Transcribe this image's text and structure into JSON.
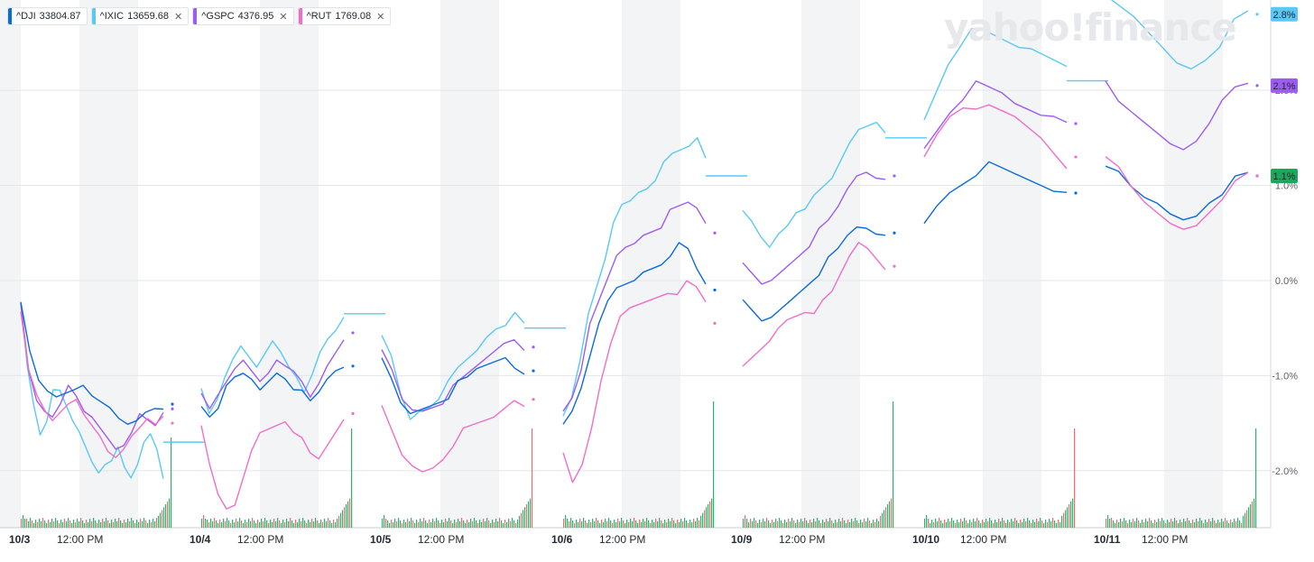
{
  "brand": {
    "watermark": "yahoo!finance"
  },
  "legend": [
    {
      "symbol": "^DJI",
      "value": "33804.87",
      "color": "#0b6bd8",
      "closable": false
    },
    {
      "symbol": "^IXIC",
      "value": "13659.68",
      "color": "#5ac8f5",
      "closable": true
    },
    {
      "symbol": "^GSPC",
      "value": "4376.95",
      "color": "#9d5cf0",
      "closable": true
    },
    {
      "symbol": "^RUT",
      "value": "1769.08",
      "color": "#f06ec8",
      "closable": true
    }
  ],
  "chart_data": {
    "type": "line",
    "y_ticks": [
      "2.0%",
      "1.0%",
      "0.0%",
      "-1.0%",
      "-2.0%"
    ],
    "ylim": [
      -2.6,
      2.95
    ],
    "grid": true,
    "x_day_labels": [
      "10/3",
      "10/4",
      "10/5",
      "10/6",
      "10/9",
      "10/10",
      "10/11"
    ],
    "x_time_label": "12:00 PM",
    "last_value_flags": [
      {
        "series": "^IXIC",
        "label": "2.8%",
        "value": 2.8
      },
      {
        "series": "^GSPC",
        "label": "2.1%",
        "value": 2.05
      },
      {
        "series": "^DJI",
        "label": "1.1%",
        "value": 1.1
      }
    ],
    "series": [
      {
        "name": "^IXIC",
        "color": "#5ac8f5",
        "days": [
          {
            "open": -0.25,
            "points": [
              -0.25,
              -0.9,
              -1.3,
              -1.6,
              -1.45,
              -1.1,
              -1.2,
              -1.35,
              -1.5,
              -1.6,
              -1.75,
              -1.9,
              -2.0,
              -1.9,
              -1.85,
              -1.8,
              -2.0,
              -2.1,
              -1.95,
              -1.7,
              -1.6,
              -1.75,
              -2.05
            ],
            "close": -1.7
          },
          {
            "open": -1.1,
            "points": [
              -1.1,
              -1.35,
              -1.3,
              -1.05,
              -0.85,
              -0.7,
              -0.8,
              -0.9,
              -0.75,
              -0.6,
              -0.7,
              -0.95,
              -1.05,
              -1.2,
              -1.0,
              -0.75,
              -0.6,
              -0.5,
              -0.35
            ],
            "close": -0.35
          },
          {
            "open": -0.6,
            "points": [
              -0.6,
              -0.8,
              -1.2,
              -1.45,
              -1.35,
              -1.3,
              -1.2,
              -1.1,
              -0.95,
              -0.85,
              -0.75,
              -0.6,
              -0.5,
              -0.45,
              -0.3,
              -0.4
            ],
            "close": -0.5
          },
          {
            "open": -1.4,
            "points": [
              -1.4,
              -1.2,
              -0.8,
              -0.4,
              -0.1,
              0.2,
              0.6,
              0.8,
              0.85,
              0.95,
              1.0,
              1.1,
              1.2,
              1.3,
              1.35,
              1.4,
              1.5,
              1.3
            ],
            "close": 1.1
          },
          {
            "open": 0.7,
            "points": [
              0.7,
              0.6,
              0.45,
              0.35,
              0.5,
              0.6,
              0.75,
              0.8,
              0.85,
              0.95,
              1.05,
              1.25,
              1.45,
              1.6,
              1.65,
              1.7,
              1.6
            ],
            "close": 1.5
          },
          {
            "open": 1.7,
            "points": [
              1.7,
              2.0,
              2.3,
              2.5,
              2.6,
              2.6,
              2.55,
              2.5,
              2.45,
              2.45,
              2.4,
              2.35,
              2.3
            ],
            "close": 2.1
          },
          {
            "open": 2.95,
            "points": [
              2.95,
              2.85,
              2.75,
              2.6,
              2.45,
              2.3,
              2.25,
              2.35,
              2.5,
              2.7,
              2.8
            ],
            "close": 2.8
          }
        ]
      },
      {
        "name": "^GSPC",
        "color": "#9d5cf0",
        "days": [
          {
            "open": -0.25,
            "points": [
              -0.25,
              -0.95,
              -1.25,
              -1.35,
              -1.4,
              -1.25,
              -1.15,
              -1.25,
              -1.4,
              -1.45,
              -1.55,
              -1.65,
              -1.75,
              -1.7,
              -1.55,
              -1.45,
              -1.5,
              -1.55,
              -1.4
            ],
            "close": -1.35
          },
          {
            "open": -1.15,
            "points": [
              -1.15,
              -1.3,
              -1.25,
              -1.1,
              -0.95,
              -0.85,
              -0.95,
              -1.05,
              -0.95,
              -0.8,
              -0.85,
              -1.0,
              -1.1,
              -1.25,
              -1.1,
              -0.9,
              -0.75,
              -0.6
            ],
            "close": -0.55
          },
          {
            "open": -0.75,
            "points": [
              -0.75,
              -0.95,
              -1.25,
              -1.35,
              -1.35,
              -1.3,
              -1.25,
              -1.15,
              -1.05,
              -0.95,
              -0.85,
              -0.75,
              -0.65,
              -0.6,
              -0.7
            ],
            "close": -0.7
          },
          {
            "open": -1.35,
            "points": [
              -1.35,
              -1.2,
              -0.9,
              -0.5,
              -0.25,
              0.0,
              0.25,
              0.35,
              0.4,
              0.5,
              0.55,
              0.6,
              0.7,
              0.75,
              0.8,
              0.75,
              0.6
            ],
            "close": 0.5
          },
          {
            "open": 0.15,
            "points": [
              0.15,
              0.05,
              -0.05,
              0.0,
              0.1,
              0.2,
              0.3,
              0.4,
              0.5,
              0.6,
              0.75,
              0.95,
              1.1,
              1.15,
              1.1,
              1.1
            ],
            "close": 1.1
          },
          {
            "open": 1.4,
            "points": [
              1.4,
              1.6,
              1.8,
              1.95,
              2.05,
              2.0,
              1.95,
              1.85,
              1.8,
              1.75,
              1.75,
              1.7
            ],
            "close": 1.65
          },
          {
            "open": 2.05,
            "points": [
              2.05,
              1.85,
              1.75,
              1.65,
              1.55,
              1.45,
              1.4,
              1.5,
              1.7,
              1.85,
              2.0,
              2.05
            ],
            "close": 2.05
          }
        ]
      },
      {
        "name": "^DJI",
        "color": "#0b6bd8",
        "days": [
          {
            "open": -0.25,
            "points": [
              -0.25,
              -0.75,
              -1.05,
              -1.15,
              -1.2,
              -1.15,
              -1.1,
              -1.15,
              -1.25,
              -1.3,
              -1.35,
              -1.45,
              -1.5,
              -1.45,
              -1.35,
              -1.3,
              -1.4
            ],
            "close": -1.3
          },
          {
            "open": -1.3,
            "points": [
              -1.3,
              -1.4,
              -1.3,
              -1.15,
              -1.05,
              -1.0,
              -1.05,
              -1.15,
              -1.05,
              -0.95,
              -1.0,
              -1.1,
              -1.2,
              -1.3,
              -1.2,
              -1.05,
              -0.95,
              -0.9
            ],
            "close": -0.9
          },
          {
            "open": -0.85,
            "points": [
              -0.85,
              -1.05,
              -1.3,
              -1.4,
              -1.35,
              -1.3,
              -1.25,
              -1.2,
              -1.1,
              -1.05,
              -0.95,
              -0.9,
              -0.85,
              -0.8,
              -0.9,
              -0.95
            ],
            "close": -0.95
          },
          {
            "open": -1.5,
            "points": [
              -1.5,
              -1.35,
              -1.1,
              -0.75,
              -0.5,
              -0.25,
              -0.1,
              -0.05,
              0.0,
              0.1,
              0.15,
              0.2,
              0.3,
              0.35,
              0.3,
              0.1,
              -0.05
            ],
            "close": -0.1
          },
          {
            "open": -0.25,
            "points": [
              -0.25,
              -0.35,
              -0.45,
              -0.4,
              -0.3,
              -0.2,
              -0.1,
              0.0,
              0.1,
              0.2,
              0.3,
              0.45,
              0.55,
              0.55,
              0.5,
              0.5
            ],
            "close": 0.5
          },
          {
            "open": 0.6,
            "points": [
              0.6,
              0.8,
              0.95,
              1.05,
              1.15,
              1.2,
              1.15,
              1.1,
              1.05,
              1.0,
              0.95,
              0.95
            ],
            "close": 0.92
          },
          {
            "open": 1.25,
            "points": [
              1.25,
              1.1,
              0.95,
              0.85,
              0.8,
              0.7,
              0.65,
              0.7,
              0.85,
              0.95,
              1.05,
              1.1
            ],
            "close": 1.1
          }
        ]
      },
      {
        "name": "^RUT",
        "color": "#f06ec8",
        "days": [
          {
            "open": -0.35,
            "points": [
              -0.35,
              -0.95,
              -1.2,
              -1.35,
              -1.45,
              -1.35,
              -1.25,
              -1.3,
              -1.45,
              -1.55,
              -1.65,
              -1.8,
              -1.85,
              -1.75,
              -1.6,
              -1.5,
              -1.5,
              -1.55,
              -1.45
            ],
            "close": -1.5
          },
          {
            "open": -1.5,
            "points": [
              -1.5,
              -1.9,
              -2.2,
              -2.45,
              -2.4,
              -2.1,
              -1.8,
              -1.6,
              -1.55,
              -1.5,
              -1.45,
              -1.55,
              -1.7,
              -1.85,
              -1.9,
              -1.75,
              -1.6,
              -1.45
            ],
            "close": -1.4
          },
          {
            "open": -1.35,
            "points": [
              -1.35,
              -1.6,
              -1.85,
              -1.95,
              -2.0,
              -1.95,
              -1.85,
              -1.7,
              -1.6,
              -1.55,
              -1.5,
              -1.45,
              -1.35,
              -1.25,
              -1.3
            ],
            "close": -1.25
          },
          {
            "open": -1.8,
            "points": [
              -1.8,
              -2.1,
              -1.9,
              -1.5,
              -1.1,
              -0.7,
              -0.4,
              -0.3,
              -0.25,
              -0.2,
              -0.15,
              -0.1,
              -0.1,
              -0.05,
              -0.1,
              -0.25
            ],
            "close": -0.45
          },
          {
            "open": -0.95,
            "points": [
              -0.95,
              -0.85,
              -0.75,
              -0.65,
              -0.5,
              -0.4,
              -0.35,
              -0.3,
              -0.3,
              -0.25,
              -0.15,
              0.05,
              0.25,
              0.4,
              0.35,
              0.25,
              0.15
            ],
            "close": 0.15
          },
          {
            "open": 1.3,
            "points": [
              1.3,
              1.55,
              1.75,
              1.85,
              1.85,
              1.8,
              1.75,
              1.7,
              1.6,
              1.5,
              1.35,
              1.2
            ],
            "close": 1.3
          },
          {
            "open": 1.35,
            "points": [
              1.35,
              1.15,
              0.95,
              0.8,
              0.7,
              0.6,
              0.55,
              0.6,
              0.75,
              0.9,
              1.0,
              1.1
            ],
            "close": 1.1
          }
        ]
      }
    ]
  }
}
